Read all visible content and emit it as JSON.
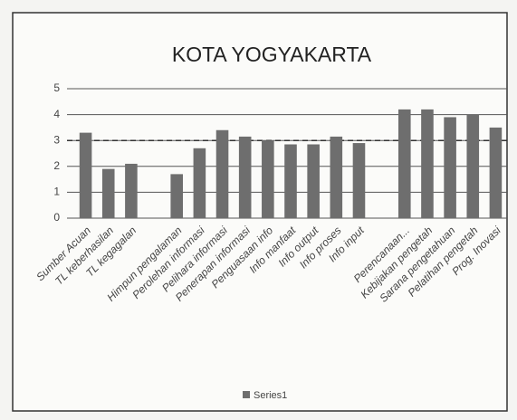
{
  "chart_data": {
    "type": "bar",
    "title": "KOTA YOGYAKARTA",
    "categories": [
      "Sumber Acuan",
      "TL keberhasilan",
      "TL kegagalan",
      null,
      "Himpun pengalaman",
      "Perolehan informasi",
      "Pelihara informasi",
      "Penerapan informasi",
      "Penguasaan info",
      "Info manfaat",
      "Info output",
      "Info proses",
      "Info input",
      null,
      "Perencanaan...",
      "Kebijakan pengetah",
      "Sarana pengetahuan",
      "Pelatihan pengetah",
      "Prog. Inovasi"
    ],
    "series": [
      {
        "name": "Series1",
        "color": "#6e6e6e",
        "values": [
          3.3,
          1.9,
          2.1,
          null,
          1.7,
          2.7,
          3.4,
          3.15,
          3.0,
          2.85,
          2.85,
          3.15,
          2.9,
          null,
          4.2,
          4.2,
          3.9,
          4.0,
          3.5
        ]
      }
    ],
    "reference_line": 3,
    "ylim": [
      0,
      5
    ],
    "yticks": [
      0,
      1,
      2,
      3,
      4,
      5
    ],
    "grid": true,
    "legend": "bottom"
  }
}
